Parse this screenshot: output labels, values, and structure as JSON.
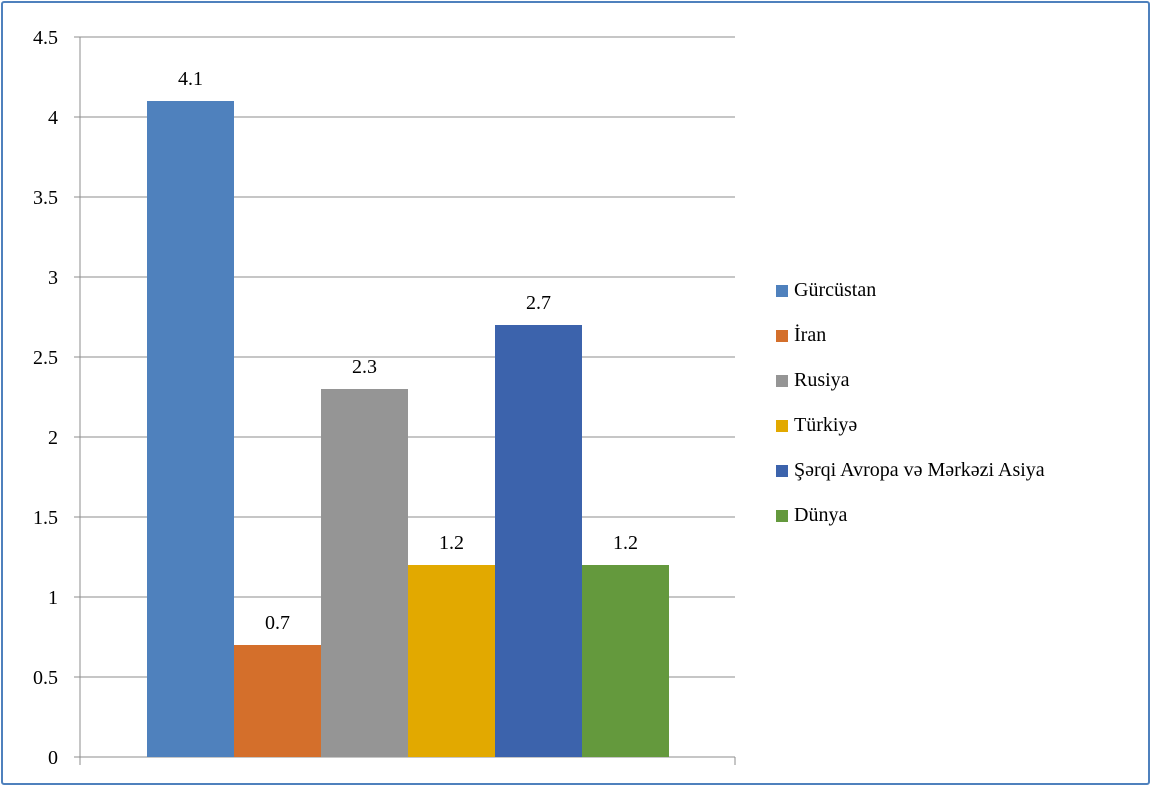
{
  "chart_data": {
    "type": "bar",
    "title": "",
    "xlabel": "",
    "ylabel": "",
    "ylim": [
      0,
      4.5
    ],
    "yticks": [
      "0",
      "0.5",
      "1",
      "1.5",
      "2",
      "2.5",
      "3",
      "3.5",
      "4",
      "4.5"
    ],
    "grid": true,
    "legend_position": "right",
    "series": [
      {
        "name": "Gürcüstan",
        "value": 4.1,
        "label": "4.1",
        "color": "#4f81bd"
      },
      {
        "name": "İran",
        "value": 0.7,
        "label": "0.7",
        "color": "#d46f2b"
      },
      {
        "name": "Rusiya",
        "value": 2.3,
        "label": "2.3",
        "color": "#959595"
      },
      {
        "name": "Türkiyə",
        "value": 1.2,
        "label": "1.2",
        "color": "#e2a900"
      },
      {
        "name": "Şərqi Avropa və Mərkəzi Asiya",
        "value": 2.7,
        "label": "2.7",
        "color": "#3c63ac"
      },
      {
        "name": "Dünya",
        "value": 1.2,
        "label": "1.2",
        "color": "#64993d"
      }
    ]
  }
}
